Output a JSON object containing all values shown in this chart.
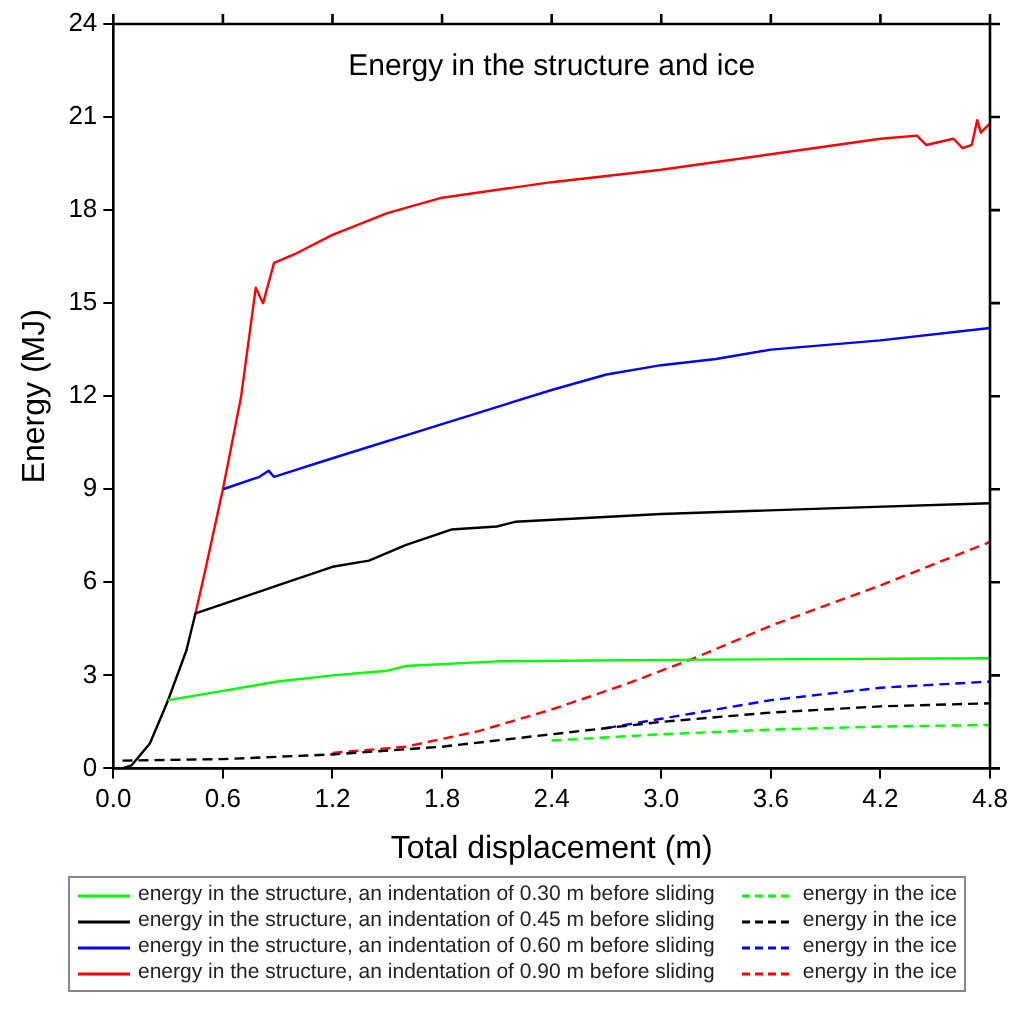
{
  "chart_data": {
    "type": "line",
    "title": "Energy in the structure and ice",
    "xlabel": "Total displacement (m)",
    "ylabel": "Energy (MJ)",
    "xlim": [
      0,
      4.8
    ],
    "xticks": [
      {
        "value": 0,
        "label": "0.0"
      },
      {
        "value": 0.6,
        "label": "0.6"
      },
      {
        "value": 1.2,
        "label": "1.2"
      },
      {
        "value": 1.8,
        "label": "1.8"
      },
      {
        "value": 2.4,
        "label": "2.4"
      },
      {
        "value": 3,
        "label": "3.0"
      },
      {
        "value": 3.6,
        "label": "3.6"
      },
      {
        "value": 4.2,
        "label": "4.2"
      },
      {
        "value": 4.8,
        "label": "4.8"
      }
    ],
    "ylim": [
      0,
      24
    ],
    "yticks": [
      0,
      3,
      6,
      9,
      12,
      15,
      18,
      21,
      24
    ],
    "grid": false,
    "legend": "bottom",
    "marker": "none",
    "series": [
      {
        "name": "energy in the structure, an indentation of 0.30 m before sliding",
        "color": "#00ff00",
        "line_style": "solid",
        "x": [
          0.3,
          0.6,
          0.9,
          1.2,
          1.5,
          1.6,
          2.1,
          3.0,
          4.8
        ],
        "values": [
          2.2,
          2.5,
          2.8,
          3.0,
          3.15,
          3.3,
          3.45,
          3.5,
          3.55
        ]
      },
      {
        "name": "energy in the structure, an indentation of 0.45 m before sliding",
        "color": "#000000",
        "line_style": "solid",
        "x": [
          0.05,
          0.1,
          0.2,
          0.3,
          0.4,
          0.45,
          0.6,
          0.9,
          1.2,
          1.4,
          1.6,
          1.85,
          2.1,
          2.2,
          3.0,
          4.0,
          4.8
        ],
        "values": [
          0,
          0.1,
          0.8,
          2.2,
          3.8,
          5.0,
          5.3,
          5.9,
          6.5,
          6.7,
          7.2,
          7.7,
          7.8,
          7.95,
          8.2,
          8.4,
          8.55
        ]
      },
      {
        "name": "energy in the structure, an indentation of 0.60 m before sliding",
        "color": "#0000ff",
        "line_style": "solid",
        "x": [
          0.6,
          0.8,
          0.85,
          0.88,
          1.2,
          1.8,
          2.4,
          2.7,
          3.0,
          3.3,
          3.6,
          4.2,
          4.8
        ],
        "values": [
          9.0,
          9.4,
          9.6,
          9.4,
          10.0,
          11.1,
          12.2,
          12.7,
          13.0,
          13.2,
          13.5,
          13.8,
          14.2
        ]
      },
      {
        "name": "energy in the structure, an indentation of 0.90 m before sliding",
        "color": "#ff0000",
        "line_style": "solid",
        "x": [
          0.45,
          0.5,
          0.6,
          0.7,
          0.78,
          0.82,
          0.88,
          1.0,
          1.2,
          1.5,
          1.8,
          2.4,
          3.0,
          3.6,
          4.2,
          4.4,
          4.45,
          4.6,
          4.65,
          4.7,
          4.73,
          4.75,
          4.8
        ],
        "values": [
          5.0,
          6.3,
          9.0,
          12,
          15.5,
          15.0,
          16.3,
          16.6,
          17.2,
          17.9,
          18.4,
          18.9,
          19.3,
          19.8,
          20.3,
          20.4,
          20.1,
          20.3,
          20.0,
          20.1,
          20.9,
          20.5,
          20.8
        ]
      },
      {
        "name": "energy in the ice",
        "color": "#00ff00",
        "line_style": "dashed",
        "x": [
          2.4,
          3.0,
          3.6,
          4.2,
          4.8
        ],
        "values": [
          0.9,
          1.1,
          1.25,
          1.35,
          1.4
        ]
      },
      {
        "name": "energy in the ice",
        "color": "#000000",
        "line_style": "dashed",
        "x": [
          0.05,
          0.6,
          1.2,
          1.8,
          2.4,
          3.0,
          3.6,
          4.2,
          4.8
        ],
        "values": [
          0.25,
          0.3,
          0.45,
          0.7,
          1.1,
          1.5,
          1.8,
          2.0,
          2.1
        ]
      },
      {
        "name": "energy in the ice",
        "color": "#0000ff",
        "line_style": "dashed",
        "x": [
          2.7,
          3.0,
          3.6,
          4.2,
          4.8
        ],
        "values": [
          1.3,
          1.6,
          2.2,
          2.6,
          2.8
        ]
      },
      {
        "name": "energy in the ice",
        "color": "#ff0000",
        "line_style": "dashed",
        "x": [
          1.2,
          1.6,
          2.0,
          2.4,
          2.8,
          3.2,
          3.6,
          4.2,
          4.8
        ],
        "values": [
          0.5,
          0.7,
          1.2,
          1.9,
          2.7,
          3.6,
          4.6,
          5.9,
          7.3
        ]
      }
    ]
  }
}
